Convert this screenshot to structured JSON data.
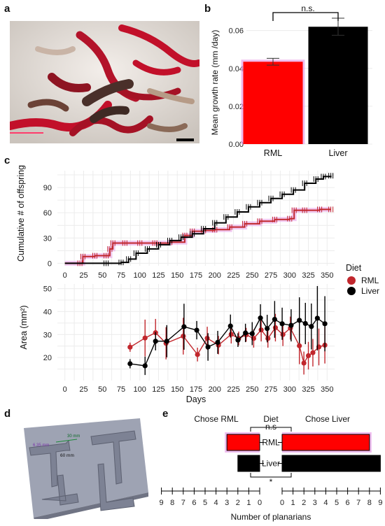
{
  "panel_letters": {
    "a": "a",
    "b": "b",
    "c": "c",
    "d": "d",
    "e": "e"
  },
  "colors": {
    "rml": "#ff0000",
    "rml_line": "#c1272d",
    "liver": "#000000",
    "grid": "#e6e6e6",
    "highlight": "#e8a0e8"
  },
  "panel_a": {
    "image": "microscope-photo-planarians-feeding-on-red-food"
  },
  "panel_d": {
    "image": "3d-render-of-t-maze-plate",
    "labels": {
      "width": "6.35 mm",
      "arm": "30 mm",
      "stem": "60 mm"
    }
  },
  "chart_data": [
    {
      "id": "b",
      "type": "bar",
      "categories": [
        "RML",
        "Liver"
      ],
      "values": [
        0.0435,
        0.062
      ],
      "errors": [
        0.0018,
        0.0045
      ],
      "colors": [
        "#ff0000",
        "#000000"
      ],
      "ylabel": "Mean growth rate (mm /day)",
      "xlabel": "",
      "ylim": [
        0,
        0.068
      ],
      "yticks": [
        "0.00",
        "0.02",
        "0.04",
        "0.06"
      ],
      "significance": "n.s."
    },
    {
      "id": "c-top",
      "type": "line",
      "ylabel": "Cumulative # of offspring",
      "xlabel": "",
      "xlim": [
        -10,
        360
      ],
      "ylim": [
        -3,
        110
      ],
      "xticks": [
        "0",
        "25",
        "50",
        "75",
        "100",
        "125",
        "150",
        "175",
        "200",
        "225",
        "250",
        "275",
        "300",
        "325",
        "350"
      ],
      "yticks": [
        "0",
        "30",
        "60",
        "90"
      ],
      "series": [
        {
          "name": "RML",
          "color": "#c1272d",
          "x": [
            0,
            20,
            24,
            40,
            55,
            60,
            64,
            80,
            100,
            120,
            140,
            160,
            170,
            185,
            200,
            220,
            240,
            260,
            280,
            300,
            306,
            320,
            340,
            355
          ],
          "y": [
            0,
            0,
            8,
            9,
            9,
            17,
            24,
            24,
            24,
            24,
            25,
            33,
            38,
            39,
            40,
            43,
            47,
            50,
            52,
            53,
            63,
            63,
            64,
            64
          ]
        },
        {
          "name": "Liver",
          "color": "#000000",
          "x": [
            0,
            55,
            75,
            85,
            95,
            110,
            125,
            140,
            155,
            170,
            185,
            200,
            215,
            230,
            245,
            260,
            275,
            290,
            305,
            320,
            335,
            345,
            355
          ],
          "y": [
            0,
            0,
            1,
            5,
            12,
            17,
            22,
            27,
            31,
            35,
            41,
            48,
            55,
            61,
            67,
            72,
            77,
            82,
            87,
            95,
            100,
            103,
            104
          ]
        }
      ]
    },
    {
      "id": "c-bottom",
      "type": "line",
      "ylabel": "Area (mm²)",
      "xlabel": "Days",
      "xlim": [
        -10,
        360
      ],
      "ylim": [
        10,
        52
      ],
      "xticks": [
        "0",
        "25",
        "50",
        "75",
        "100",
        "125",
        "150",
        "175",
        "200",
        "225",
        "250",
        "275",
        "300",
        "325",
        "350"
      ],
      "yticks": [
        "20",
        "30",
        "40",
        "50"
      ],
      "legend_title": "Diet",
      "series": [
        {
          "name": "RML",
          "color": "#c1272d",
          "x": [
            87,
            107,
            121,
            135,
            158,
            177,
            190,
            205,
            222,
            232,
            242,
            252,
            262,
            271,
            281,
            291,
            301,
            313,
            319,
            325,
            331,
            339,
            347
          ],
          "y": [
            24.5,
            28.5,
            30.8,
            26.2,
            29.3,
            21.3,
            28.4,
            25.4,
            30.1,
            28.3,
            29.9,
            28.3,
            32.0,
            28.3,
            33.0,
            30.0,
            32.8,
            25.1,
            17.6,
            20.8,
            22.1,
            24.6,
            25.4
          ],
          "err": [
            2,
            8,
            6,
            7,
            8,
            3,
            5,
            4,
            4,
            3,
            3,
            4,
            5,
            4,
            6,
            5,
            5,
            8,
            5,
            6,
            6,
            8,
            8
          ]
        },
        {
          "name": "Liver",
          "color": "#000000",
          "x": [
            87,
            107,
            121,
            136,
            159,
            176,
            191,
            204,
            221,
            231,
            241,
            250,
            261,
            270,
            280,
            290,
            302,
            313,
            321,
            329,
            337,
            347
          ],
          "y": [
            17.3,
            16.4,
            27.1,
            27.1,
            33.4,
            31.9,
            24.6,
            26.6,
            33.7,
            27.6,
            30.7,
            30.4,
            37.2,
            32.6,
            36.6,
            34.7,
            34.0,
            36.2,
            34.8,
            33.5,
            37.1,
            34.7
          ],
          "err": [
            2,
            4,
            4,
            7,
            10,
            4,
            6,
            5,
            5,
            3,
            4,
            5,
            6,
            6,
            8,
            7,
            7,
            10,
            9,
            10,
            14,
            12
          ]
        }
      ]
    },
    {
      "id": "e",
      "type": "bar",
      "orientation": "horizontal",
      "categories": [
        "RML",
        "Liver"
      ],
      "chose_left": [
        3,
        2
      ],
      "chose_right": [
        8,
        9
      ],
      "left_label": "Chose RML",
      "right_label": "Chose Liver",
      "center_title": "Diet",
      "sig_top": "n.s",
      "sig_bottom": "*",
      "xlabel": "Number of planarians",
      "xticks_left": [
        "9",
        "8",
        "7",
        "6",
        "5",
        "4",
        "3",
        "2",
        "1",
        "0"
      ],
      "xticks_right": [
        "0",
        "1",
        "2",
        "3",
        "4",
        "5",
        "6",
        "7",
        "8",
        "9"
      ]
    }
  ]
}
